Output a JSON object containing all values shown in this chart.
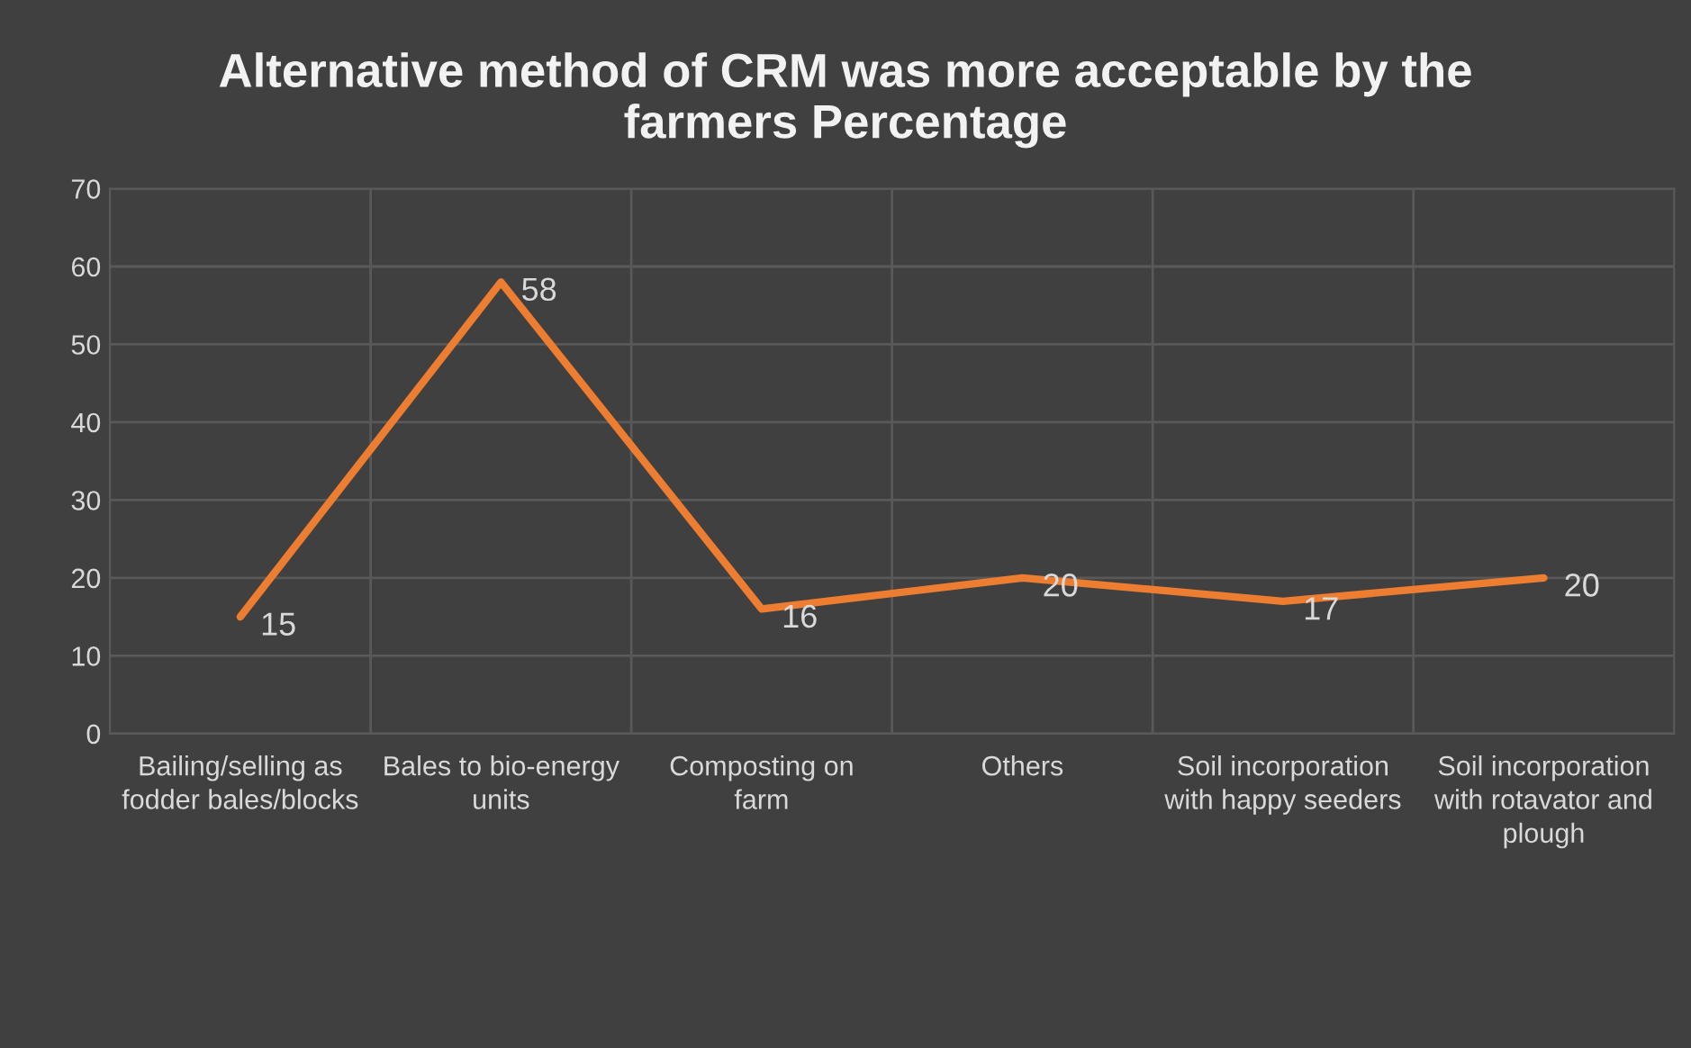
{
  "chart_data": {
    "type": "line",
    "title": "Alternative method of CRM was more acceptable by the farmers Percentage",
    "categories": [
      "Bailing/selling as fodder bales/blocks",
      "Bales to bio-energy units",
      "Composting on farm",
      "Others",
      "Soil incorporation with happy seeders",
      "Soil incorporation with rotavator and plough"
    ],
    "series": [
      {
        "color": "#ed7d31",
        "values": [
          15,
          58,
          16,
          20,
          17,
          20
        ]
      }
    ],
    "ylim": [
      0,
      70
    ],
    "yticks": [
      0,
      10,
      20,
      30,
      40,
      50,
      60,
      70
    ],
    "grid": true,
    "data_labels": true,
    "marker": "none",
    "line_style": "solid",
    "legend": false
  }
}
